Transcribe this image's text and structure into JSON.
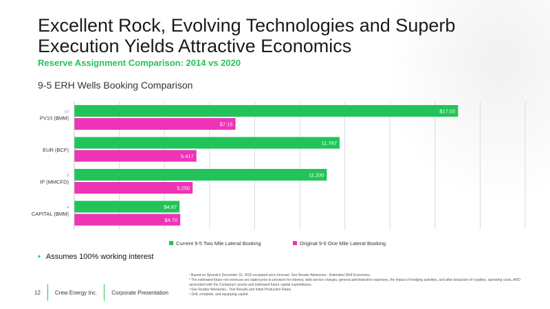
{
  "title_line1": "Excellent Rock, Evolving Technologies and Superb",
  "title_line2": "Execution Yields Attractive Economics",
  "subtitle": "Reserve Assignment Comparison: 2014 vs 2020",
  "chart_heading": "9-5 ERH Wells Booking Comparison",
  "colors": {
    "current": "#22c45a",
    "original": "#ee33b6",
    "accent": "#22c45a"
  },
  "chart_data": {
    "type": "bar",
    "orientation": "horizontal",
    "categories": [
      "PV10 ($MM)",
      "EUR (BCF)",
      "IP (MMCFD)",
      "CAPITAL ($MM)"
    ],
    "category_superscripts": [
      "1,2",
      "",
      "3",
      "4"
    ],
    "series": [
      {
        "name": "Current 9-5 Two Mile Lateral Booking",
        "values": [
          17.02,
          11.767,
          11.2,
          4.67
        ],
        "labels": [
          "$17.02",
          "11.767",
          "11.200",
          "$4.67"
        ]
      },
      {
        "name": "Original 9-5 One Mile Lateral Booking",
        "values": [
          7.15,
          5.417,
          5.25,
          4.7
        ],
        "labels": [
          "$7.15",
          "5.417",
          "5.250",
          "$4.70"
        ]
      }
    ],
    "xlim": [
      0,
      20
    ],
    "grid": true,
    "legend_position": "bottom"
  },
  "bullet": "Assumes 100% working interest",
  "footer": {
    "page": "12",
    "company": "Crew Energy Inc.",
    "doc": "Corporate Presentation"
  },
  "footnotes": [
    "¹ Based on Sproule's December 31, 2020 escalated price forecast. See Reader Advisories - Estimated Well Economics.",
    "² The estimated future net revenues are stated prior to provision for interest, debt service charges, general administrative expenses, the impact of hedging activities, and after deduction of royalties, operating costs, ARO associated with the Company's assets and estimated future capital expenditures.",
    "³ See Reader Advisories - Test Results and Initial Production Rates.",
    "⁴ Drill, complete, and equipping capital."
  ]
}
